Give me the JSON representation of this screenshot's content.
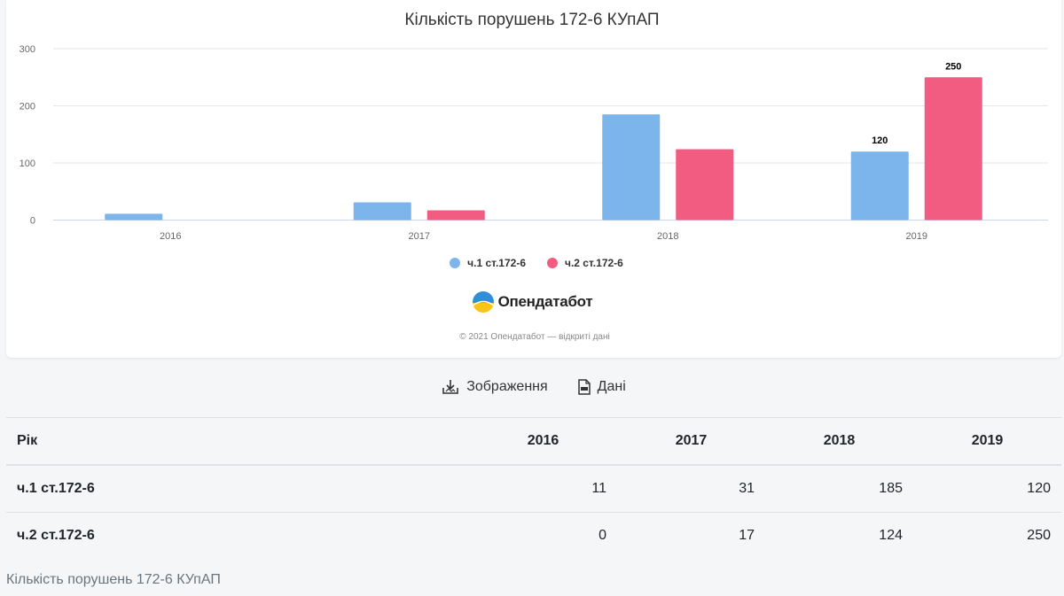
{
  "chart_data": {
    "type": "bar",
    "title": "Кількість порушень 172-6 КУпАП",
    "categories": [
      "2016",
      "2017",
      "2018",
      "2019"
    ],
    "series": [
      {
        "name": "ч.1 ст.172-6",
        "values": [
          11,
          31,
          185,
          120
        ],
        "color": "#7cb5ec"
      },
      {
        "name": "ч.2 ст.172-6",
        "values": [
          0,
          17,
          124,
          250
        ],
        "color": "#f15c80"
      }
    ],
    "data_labels": [
      {
        "series": 0,
        "index": 3,
        "text": "120"
      },
      {
        "series": 1,
        "index": 3,
        "text": "250"
      }
    ],
    "yticks": [
      "0",
      "100",
      "200",
      "300"
    ],
    "ylim": [
      0,
      300
    ],
    "grid": true,
    "legend": "bottom-center",
    "xlabel": "",
    "ylabel": ""
  },
  "branding": {
    "logo_text": "Опендатабот",
    "copyright": "© 2021 Опендатабот — відкриті дані"
  },
  "actions": {
    "image_label": "Зображення",
    "data_label": "Дані",
    "image_icon": "image-download-icon",
    "data_icon": "csv-file-icon"
  },
  "table": {
    "header": [
      "Рік",
      "2016",
      "2017",
      "2018",
      "2019"
    ],
    "rows": [
      {
        "label": "ч.1 ст.172-6",
        "values": [
          "11",
          "31",
          "185",
          "120"
        ]
      },
      {
        "label": "ч.2 ст.172-6",
        "values": [
          "0",
          "17",
          "124",
          "250"
        ]
      }
    ]
  },
  "caption": "Кількість порушень 172-6 КУпАП"
}
